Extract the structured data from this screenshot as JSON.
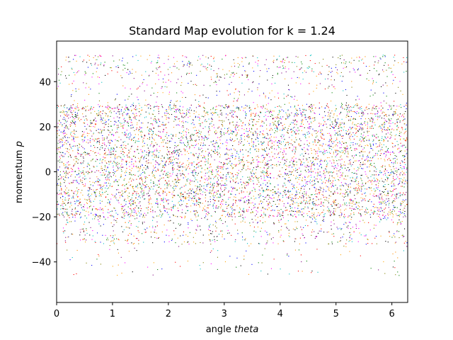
{
  "chart_data": {
    "type": "scatter",
    "title": "Standard Map evolution for k = 1.24",
    "xlabel_prefix": "angle ",
    "xlabel_var": "theta",
    "ylabel_prefix": "momentum ",
    "ylabel_var": "p",
    "xlim": [
      0,
      6.2832
    ],
    "ylim": [
      -58,
      58
    ],
    "x_ticks": [
      0,
      1,
      2,
      3,
      4,
      5,
      6
    ],
    "x_tick_labels": [
      "0",
      "1",
      "2",
      "3",
      "4",
      "5",
      "6"
    ],
    "y_ticks": [
      -40,
      -20,
      0,
      20,
      40
    ],
    "y_tick_labels": [
      "−40",
      "−20",
      "0",
      "20",
      "40"
    ],
    "grid": false,
    "marker_colors": [
      "#000000",
      "#ff00ff",
      "#008000",
      "#ff8c00",
      "#00bfbf",
      "#ff0000",
      "#0000ff",
      "#808000",
      "#800080",
      "#ffa500"
    ],
    "point_density_by_band": [
      {
        "p_range": [
          43,
          52
        ],
        "relative_density": 0.35
      },
      {
        "p_range": [
          30,
          43
        ],
        "relative_density": 0.18
      },
      {
        "p_range": [
          -20,
          30
        ],
        "relative_density": 1.0
      },
      {
        "p_range": [
          -32,
          -20
        ],
        "relative_density": 0.35
      },
      {
        "p_range": [
          -46,
          -32
        ],
        "relative_density": 0.06
      }
    ]
  }
}
